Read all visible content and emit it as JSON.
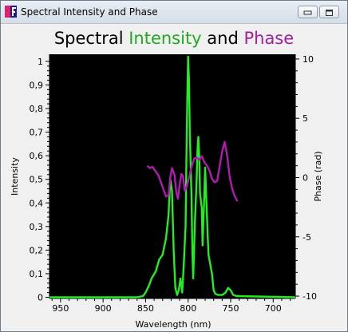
{
  "window": {
    "title": "Spectral Intensity and Phase",
    "app_icon": "igor-pro-icon",
    "minimize_icon": "minimize-icon",
    "maximize_icon": "maximize-icon"
  },
  "plot_title": {
    "part1": "Spectral ",
    "part2": "Intensity",
    "part3": " and ",
    "part4": "Phase"
  },
  "colors": {
    "intensity": "#22ee22",
    "phase": "#b01ab0",
    "plot_bg": "#000000"
  },
  "chart_data": {
    "type": "line",
    "title": "Spectral Intensity and Phase",
    "xlabel": "Wavelength (nm)",
    "ylabel": "Intensity",
    "y2label": "Phase (rad)",
    "x_reversed": true,
    "xlim": [
      963,
      674
    ],
    "ylim": [
      -0.005,
      1.03
    ],
    "y2lim": [
      -10.2,
      10.4
    ],
    "x_ticks": [
      950,
      900,
      850,
      800,
      750,
      700
    ],
    "x_tick_labels": [
      "950",
      "900",
      "850",
      "800",
      "750",
      "700"
    ],
    "y_ticks": [
      0,
      0.1,
      0.2,
      0.3,
      0.4,
      0.5,
      0.6,
      0.7,
      0.8,
      0.9,
      1
    ],
    "y_tick_labels": [
      "0",
      "0,1",
      "0,2",
      "0,3",
      "0,4",
      "0,5",
      "0,6",
      "0,7",
      "0,8",
      "0,9",
      "1"
    ],
    "y2_ticks": [
      10,
      5,
      0,
      -5,
      -10
    ],
    "y2_tick_labels": [
      "10",
      "5",
      "0",
      "-5",
      "-10"
    ],
    "series": [
      {
        "axis": "left",
        "points": [
          [
            963,
            0
          ],
          [
            860,
            0
          ],
          [
            853,
            0.005
          ],
          [
            850,
            0.02
          ],
          [
            846,
            0.05
          ],
          [
            843,
            0.08
          ],
          [
            838,
            0.11
          ],
          [
            834,
            0.16
          ],
          [
            830,
            0.18
          ],
          [
            826,
            0.25
          ],
          [
            823,
            0.35
          ],
          [
            821,
            0.5
          ],
          [
            819,
            0.45
          ],
          [
            817,
            0.2
          ],
          [
            815,
            0.04
          ],
          [
            813,
            0.01
          ],
          [
            811,
            0.03
          ],
          [
            809,
            0.08
          ],
          [
            807,
            0.02
          ],
          [
            805,
            0.15
          ],
          [
            803,
            0.3
          ],
          [
            802,
            0.6
          ],
          [
            801,
            0.85
          ],
          [
            800,
            1.02
          ],
          [
            799,
            0.92
          ],
          [
            798,
            0.7
          ],
          [
            796,
            0.42
          ],
          [
            795,
            0.2
          ],
          [
            794,
            0.08
          ],
          [
            792,
            0.32
          ],
          [
            790,
            0.5
          ],
          [
            789,
            0.62
          ],
          [
            788,
            0.68
          ],
          [
            787,
            0.6
          ],
          [
            786,
            0.44
          ],
          [
            784,
            0.38
          ],
          [
            783,
            0.22
          ],
          [
            781,
            0.43
          ],
          [
            780,
            0.55
          ],
          [
            779,
            0.45
          ],
          [
            777,
            0.26
          ],
          [
            776,
            0.18
          ],
          [
            774,
            0.14
          ],
          [
            772,
            0.1
          ],
          [
            770,
            0.03
          ],
          [
            768,
            0.015
          ],
          [
            765,
            0.01
          ],
          [
            760,
            0.01
          ],
          [
            756,
            0.02
          ],
          [
            753,
            0.04
          ],
          [
            750,
            0.03
          ],
          [
            747,
            0.01
          ],
          [
            743,
            0.005
          ],
          [
            674,
            0
          ]
        ]
      },
      {
        "axis": "right",
        "points": [
          [
            848,
            1
          ],
          [
            845,
            0.8
          ],
          [
            842,
            0.9
          ],
          [
            838,
            0.5
          ],
          [
            835,
            0.2
          ],
          [
            832,
            -0.4
          ],
          [
            829,
            -1.0
          ],
          [
            826,
            -1.6
          ],
          [
            823,
            -1.5
          ],
          [
            821,
            0
          ],
          [
            819,
            0.8
          ],
          [
            816,
            0.2
          ],
          [
            814,
            -1.2
          ],
          [
            812,
            -1.8
          ],
          [
            810,
            -0.6
          ],
          [
            808,
            0.3
          ],
          [
            806,
            0.1
          ],
          [
            804,
            -1.1
          ],
          [
            802,
            -0.8
          ],
          [
            800,
            -0.3
          ],
          [
            796,
            0.9
          ],
          [
            793,
            1.6
          ],
          [
            790,
            1.7
          ],
          [
            787,
            1.5
          ],
          [
            784,
            1.8
          ],
          [
            781,
            1.3
          ],
          [
            778,
            1.0
          ],
          [
            775,
            0.6
          ],
          [
            772,
            -0.1
          ],
          [
            769,
            -0.4
          ],
          [
            766,
            -0.3
          ],
          [
            763,
            0.9
          ],
          [
            760,
            2.2
          ],
          [
            757,
            3.0
          ],
          [
            754,
            1.8
          ],
          [
            751,
            0.0
          ],
          [
            748,
            -1.0
          ],
          [
            745,
            -1.6
          ],
          [
            742,
            -2.0
          ]
        ]
      }
    ],
    "grid": false,
    "legend": "none"
  }
}
